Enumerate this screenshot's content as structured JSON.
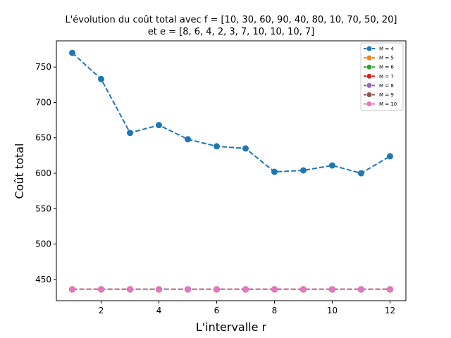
{
  "chart_data": {
    "type": "line",
    "title": "L'évolution du coût total avec f = [10, 30, 60, 90, 40, 80, 10, 70, 50, 20]",
    "subtitle": "et e = [8, 6, 4, 2, 3, 7, 10, 10, 10, 7]",
    "xlabel": "L'intervalle r",
    "ylabel": "Coût total",
    "xlim": [
      0.45,
      12.55
    ],
    "ylim": [
      420,
      787
    ],
    "xticks": [
      2,
      4,
      6,
      8,
      10,
      12
    ],
    "yticks": [
      450,
      500,
      550,
      600,
      650,
      700,
      750
    ],
    "grid": false,
    "legend_position": "top-right",
    "x": [
      1,
      2,
      3,
      4,
      5,
      6,
      7,
      8,
      9,
      10,
      11,
      12
    ],
    "series": [
      {
        "name": "M = 4",
        "color": "#1f77b4",
        "values": [
          770,
          733,
          657,
          668,
          648,
          638,
          635,
          602,
          604,
          611,
          600,
          624
        ]
      },
      {
        "name": "M = 5",
        "color": "#ff7f0e",
        "values": [
          436,
          436,
          436,
          436,
          436,
          436,
          436,
          436,
          436,
          436,
          436,
          436
        ]
      },
      {
        "name": "M = 6",
        "color": "#2ca02c",
        "values": [
          436,
          436,
          436,
          436,
          436,
          436,
          436,
          436,
          436,
          436,
          436,
          436
        ]
      },
      {
        "name": "M = 7",
        "color": "#d62728",
        "values": [
          436,
          436,
          436,
          436,
          436,
          436,
          436,
          436,
          436,
          436,
          436,
          436
        ]
      },
      {
        "name": "M = 8",
        "color": "#9467bd",
        "values": [
          436,
          436,
          436,
          436,
          436,
          436,
          436,
          436,
          436,
          436,
          436,
          436
        ]
      },
      {
        "name": "M = 9",
        "color": "#8c564b",
        "values": [
          436,
          436,
          436,
          436,
          436,
          436,
          436,
          436,
          436,
          436,
          436,
          436
        ]
      },
      {
        "name": "M = 10",
        "color": "#e377c2",
        "values": [
          436,
          436,
          436,
          436,
          436,
          436,
          436,
          436,
          436,
          436,
          436,
          436
        ]
      }
    ]
  }
}
